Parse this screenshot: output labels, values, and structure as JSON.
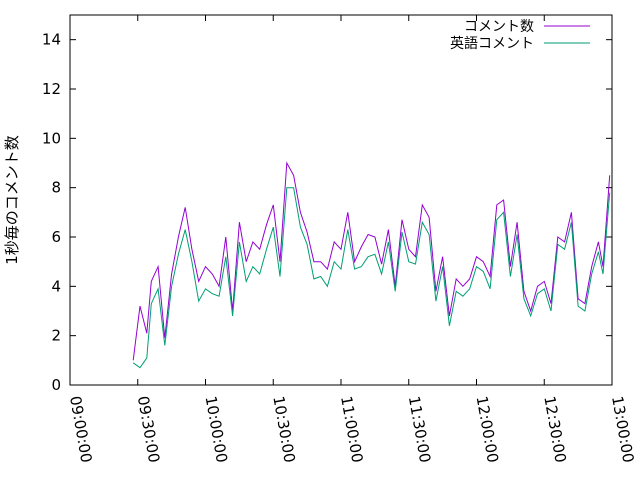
{
  "chart_data": {
    "type": "line",
    "title": "",
    "xlabel": "",
    "ylabel": "1秒毎のコメント数",
    "ylim": [
      0,
      15
    ],
    "yticks": [
      0,
      2,
      4,
      6,
      8,
      10,
      12,
      14
    ],
    "xticks": [
      "09:00:00",
      "09:30:00",
      "10:00:00",
      "10:30:00",
      "11:00:00",
      "11:30:00",
      "12:00:00",
      "12:30:00",
      "13:00:00"
    ],
    "xrange_minutes": [
      0,
      240
    ],
    "grid": false,
    "legend_position": "top-right",
    "series": [
      {
        "name": "コメント数",
        "color": "#9400d3",
        "x": [
          28,
          31,
          34,
          36,
          39,
          42,
          45,
          48,
          51,
          54,
          57,
          60,
          63,
          66,
          69,
          72,
          75,
          78,
          81,
          84,
          87,
          90,
          93,
          96,
          99,
          102,
          105,
          108,
          111,
          114,
          117,
          120,
          123,
          126,
          129,
          132,
          135,
          138,
          141,
          144,
          147,
          150,
          153,
          156,
          159,
          162,
          165,
          168,
          171,
          174,
          177,
          180,
          183,
          186,
          189,
          192,
          195,
          198,
          201,
          204,
          207,
          210,
          213,
          216,
          219,
          222,
          225,
          228,
          231,
          234,
          236,
          239
        ],
        "values": [
          1.0,
          3.2,
          2.1,
          4.2,
          4.8,
          1.9,
          4.5,
          6.0,
          7.2,
          5.5,
          4.2,
          4.8,
          4.5,
          4.0,
          6.0,
          3.0,
          6.6,
          5.0,
          5.8,
          5.5,
          6.5,
          7.3,
          5.0,
          9.0,
          8.5,
          7.0,
          6.2,
          5.0,
          5.0,
          4.7,
          5.8,
          5.5,
          7.0,
          5.0,
          5.6,
          6.1,
          6.0,
          4.9,
          6.3,
          4.0,
          6.7,
          5.5,
          5.2,
          7.3,
          6.8,
          3.8,
          5.2,
          2.8,
          4.3,
          4.0,
          4.3,
          5.2,
          5.0,
          4.4,
          7.3,
          7.5,
          4.8,
          6.6,
          3.8,
          3.0,
          4.0,
          4.2,
          3.3,
          6.0,
          5.8,
          7.0,
          3.5,
          3.3,
          4.8,
          5.8,
          4.8,
          8.5
        ]
      },
      {
        "name": "英語コメント",
        "color": "#009e73",
        "x": [
          28,
          31,
          34,
          36,
          39,
          42,
          45,
          48,
          51,
          54,
          57,
          60,
          63,
          66,
          69,
          72,
          75,
          78,
          81,
          84,
          87,
          90,
          93,
          96,
          99,
          102,
          105,
          108,
          111,
          114,
          117,
          120,
          123,
          126,
          129,
          132,
          135,
          138,
          141,
          144,
          147,
          150,
          153,
          156,
          159,
          162,
          165,
          168,
          171,
          174,
          177,
          180,
          183,
          186,
          189,
          192,
          195,
          198,
          201,
          204,
          207,
          210,
          213,
          216,
          219,
          222,
          225,
          228,
          231,
          234,
          236,
          239
        ],
        "values": [
          0.9,
          0.7,
          1.1,
          3.3,
          3.9,
          1.6,
          4.0,
          5.3,
          6.3,
          5.0,
          3.4,
          3.9,
          3.7,
          3.6,
          5.2,
          2.8,
          5.8,
          4.2,
          4.8,
          4.5,
          5.5,
          6.4,
          4.4,
          8.0,
          8.0,
          6.4,
          5.7,
          4.3,
          4.4,
          4.0,
          5.0,
          4.7,
          6.3,
          4.7,
          4.8,
          5.2,
          5.3,
          4.5,
          5.8,
          3.8,
          6.2,
          5.0,
          4.9,
          6.6,
          6.1,
          3.4,
          4.8,
          2.4,
          3.8,
          3.6,
          3.9,
          4.8,
          4.6,
          3.9,
          6.7,
          7.0,
          4.4,
          6.1,
          3.5,
          2.8,
          3.7,
          3.9,
          3.0,
          5.7,
          5.5,
          6.6,
          3.2,
          3.0,
          4.5,
          5.4,
          4.5,
          7.8
        ]
      }
    ]
  }
}
